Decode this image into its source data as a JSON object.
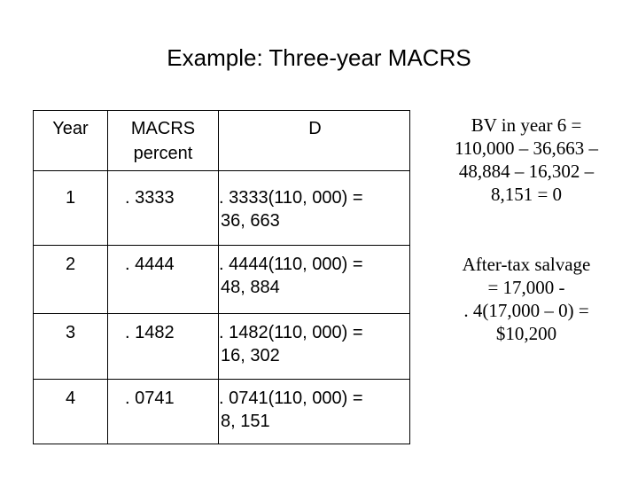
{
  "title": "Example: Three-year MACRS",
  "table": {
    "headers": [
      "Year",
      "MACRS\npercent",
      "D"
    ],
    "rows": [
      {
        "year": "1",
        "percent": ". 3333",
        "d1": ". 3333(110, 000) =",
        "d2": "36, 663"
      },
      {
        "year": "2",
        "percent": ". 4444",
        "d1": ". 4444(110, 000) =",
        "d2": "48, 884"
      },
      {
        "year": "3",
        "percent": ". 1482",
        "d1": ". 1482(110, 000) =",
        "d2": "16, 302"
      },
      {
        "year": "4",
        "percent": ". 0741",
        "d1": ". 0741(110, 000) =",
        "d2": "8, 151"
      }
    ]
  },
  "notes": {
    "bv_lines": [
      "BV in year 6 =",
      "110,000 – 36,663 –",
      "48,884 – 16,302 –",
      "8,151 = 0"
    ],
    "salvage_lines": [
      "After-tax salvage",
      "= 17,000 -",
      ". 4(17,000 – 0) =",
      "$10,200"
    ]
  }
}
